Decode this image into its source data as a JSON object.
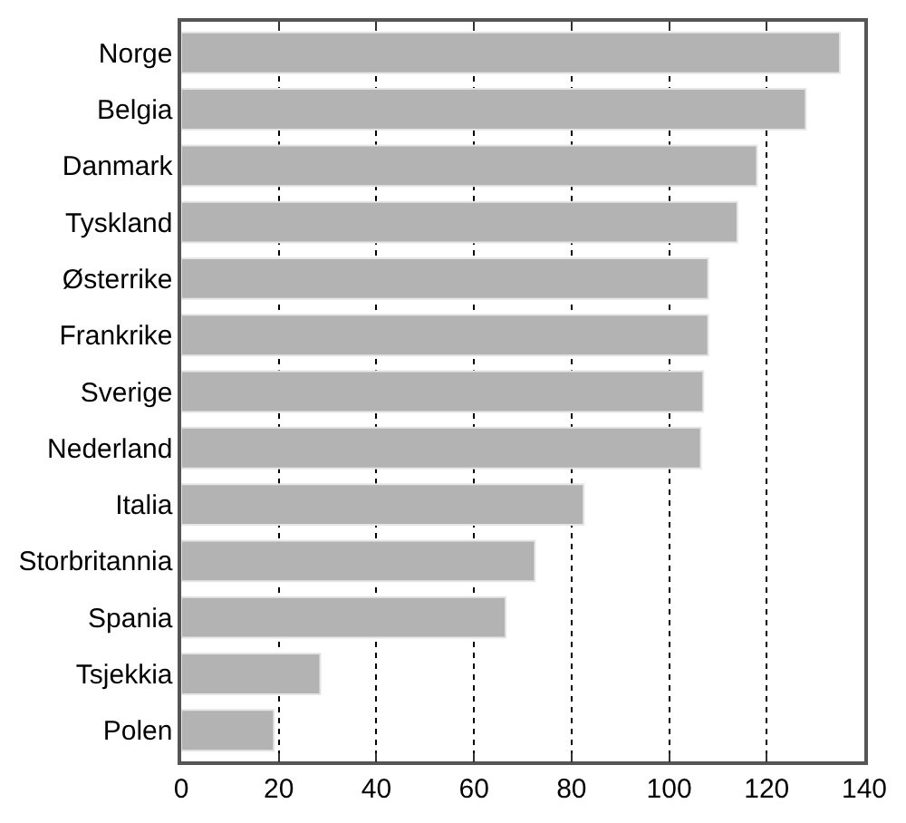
{
  "chart_data": {
    "type": "bar",
    "orientation": "horizontal",
    "categories": [
      "Norge",
      "Belgia",
      "Danmark",
      "Tyskland",
      "Østerrike",
      "Frankrike",
      "Sverige",
      "Nederland",
      "Italia",
      "Storbritannia",
      "Spania",
      "Tsjekkia",
      "Polen"
    ],
    "values": [
      135,
      128,
      118,
      114,
      108,
      108,
      107,
      106.5,
      82.5,
      72.5,
      66.5,
      28.5,
      19
    ],
    "color": "#b3b3b3",
    "xlim": [
      0,
      140
    ],
    "xticks": [
      0,
      20,
      40,
      60,
      80,
      100,
      120,
      140
    ],
    "grid": "x"
  }
}
